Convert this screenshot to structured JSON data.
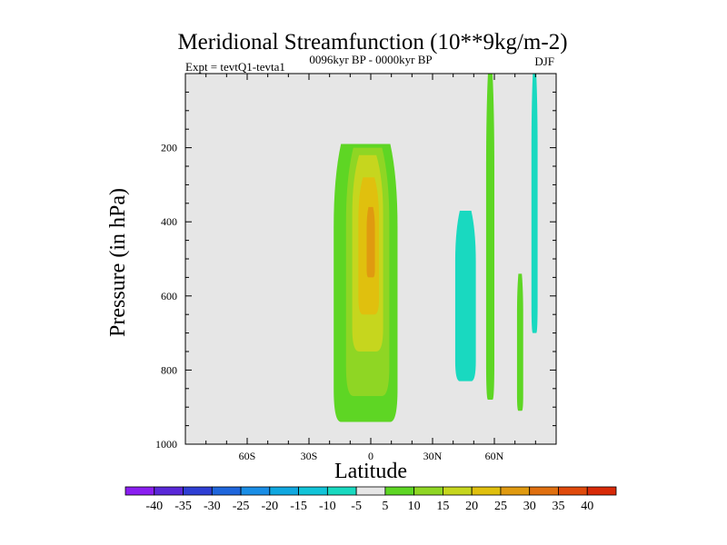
{
  "chart_data": {
    "type": "filled-contour",
    "title": "Meridional Streamfunction (10**9kg/m-2)",
    "subtitle_left": "Expt = tevtQ1-tevta1",
    "subtitle_center": "0096kyr BP - 0000kyr BP",
    "subtitle_right": "DJF",
    "xlabel": "Latitude",
    "ylabel": "Pressure (in hPa)",
    "xlim": [
      -90,
      90
    ],
    "ylim": [
      1000,
      0
    ],
    "x_ticks": [
      {
        "value": -60,
        "label": "60S"
      },
      {
        "value": -30,
        "label": "30S"
      },
      {
        "value": 0,
        "label": "0"
      },
      {
        "value": 30,
        "label": "30N"
      },
      {
        "value": 60,
        "label": "60N"
      }
    ],
    "y_ticks": [
      {
        "value": 200,
        "label": "200"
      },
      {
        "value": 400,
        "label": "400"
      },
      {
        "value": 600,
        "label": "600"
      },
      {
        "value": 800,
        "label": "800"
      },
      {
        "value": 1000,
        "label": "1000"
      }
    ],
    "background_color": "#e6e6e6",
    "colorbar": {
      "labels": [
        "-40",
        "-35",
        "-30",
        "-25",
        "-20",
        "-15",
        "-10",
        "-5",
        "5",
        "10",
        "15",
        "20",
        "25",
        "30",
        "35",
        "40"
      ],
      "colors": [
        "#8a1ef0",
        "#5a28d8",
        "#2f3fd4",
        "#1f66dc",
        "#1a8ee6",
        "#10a8e0",
        "#12c4d8",
        "#19d9c0",
        "#e6e6e6",
        "#5ed624",
        "#8fd624",
        "#c6d61e",
        "#e0c00e",
        "#e09a10",
        "#e07010",
        "#e04a0c",
        "#d82a08"
      ]
    },
    "regions": [
      {
        "name": "positive-cell-5",
        "level": "5 to 10",
        "color": "#5ed624",
        "lat_min": -18,
        "lat_max": 13,
        "p_top": 190,
        "p_bottom": 940
      },
      {
        "name": "positive-cell-10",
        "level": "10 to 15",
        "color": "#8fd624",
        "lat_min": -12,
        "lat_max": 9,
        "p_top": 200,
        "p_bottom": 870
      },
      {
        "name": "positive-cell-15",
        "level": "15 to 20",
        "color": "#c6d61e",
        "lat_min": -9,
        "lat_max": 6,
        "p_top": 220,
        "p_bottom": 750
      },
      {
        "name": "positive-cell-20",
        "level": "20 to 25",
        "color": "#e0c00e",
        "lat_min": -6,
        "lat_max": 4,
        "p_top": 280,
        "p_bottom": 650
      },
      {
        "name": "positive-cell-25",
        "level": "25 to 30",
        "color": "#e09a10",
        "lat_min": -2,
        "lat_max": 2,
        "p_top": 360,
        "p_bottom": 550
      },
      {
        "name": "negative-cell-45n",
        "level": "-5 to -10",
        "color": "#19d9c0",
        "lat_min": 41,
        "lat_max": 51,
        "p_top": 370,
        "p_bottom": 830
      },
      {
        "name": "negative-cell-80n",
        "level": "-5 to -10",
        "color": "#19d9c0",
        "lat_min": 78,
        "lat_max": 81,
        "p_top": 0,
        "p_bottom": 700
      },
      {
        "name": "positive-cell-58n",
        "level": "5 to 10",
        "color": "#5ed624",
        "lat_min": 56,
        "lat_max": 60,
        "p_top": 0,
        "p_bottom": 880
      },
      {
        "name": "positive-cell-73n",
        "level": "5 to 10",
        "color": "#5ed624",
        "lat_min": 71,
        "lat_max": 74,
        "p_top": 540,
        "p_bottom": 910
      }
    ]
  }
}
